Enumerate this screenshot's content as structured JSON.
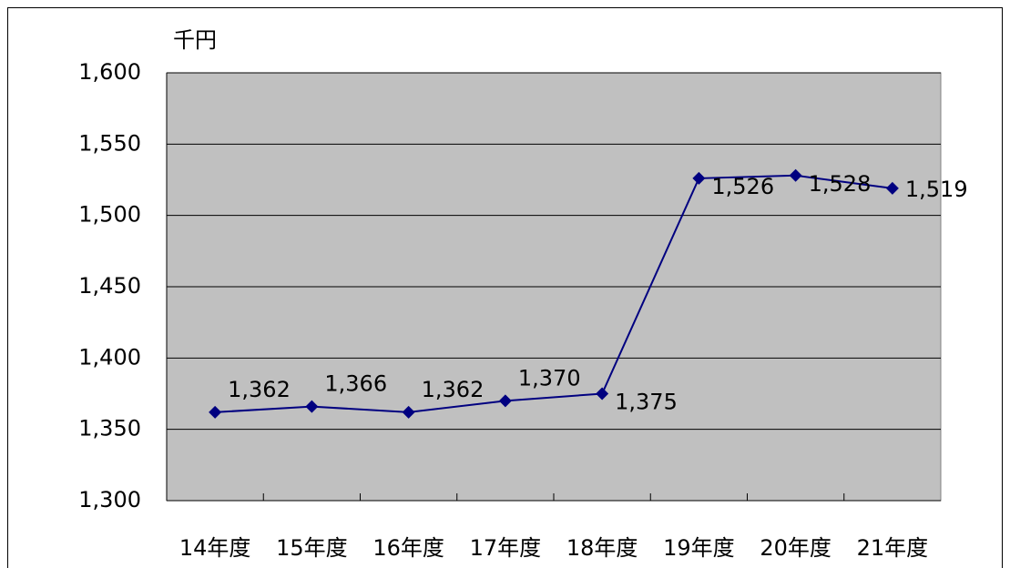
{
  "chart_data": {
    "type": "line",
    "y_unit": "千円",
    "categories": [
      "14年度",
      "15年度",
      "16年度",
      "17年度",
      "18年度",
      "19年度",
      "20年度",
      "21年度"
    ],
    "values": [
      1362,
      1366,
      1362,
      1370,
      1375,
      1526,
      1528,
      1519
    ],
    "value_labels": [
      "1,362",
      "1,366",
      "1,362",
      "1,370",
      "1,375",
      "1,526",
      "1,528",
      "1,519"
    ],
    "color": "#000080",
    "ylim": [
      1300,
      1600
    ],
    "yticks": [
      {
        "value": 1300,
        "label": "1,300"
      },
      {
        "value": 1350,
        "label": "1,350"
      },
      {
        "value": 1400,
        "label": "1,400"
      },
      {
        "value": 1450,
        "label": "1,450"
      },
      {
        "value": 1500,
        "label": "1,500"
      },
      {
        "value": 1550,
        "label": "1,550"
      },
      {
        "value": 1600,
        "label": "1,600"
      }
    ],
    "grid": true,
    "plot_background": "#c0c0c0"
  }
}
